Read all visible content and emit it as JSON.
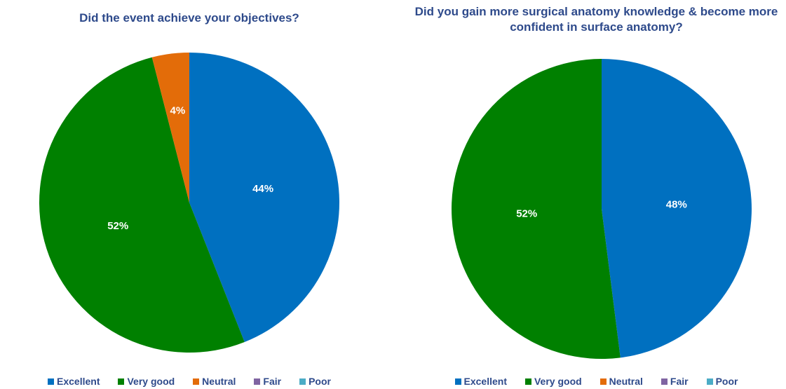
{
  "chart_data": [
    {
      "type": "pie",
      "title": "Did the event achieve your objectives?",
      "categories": [
        "Excellent",
        "Very good",
        "Neutral",
        "Fair",
        "Poor"
      ],
      "values": [
        44,
        52,
        4,
        0,
        0
      ],
      "data_labels": [
        "44%",
        "52%",
        "4%",
        "",
        ""
      ],
      "colors": [
        "#0070C0",
        "#008000",
        "#E36C09",
        "#8064A2",
        "#4BACC6"
      ],
      "legend_position": "bottom"
    },
    {
      "type": "pie",
      "title": "Did you gain more surgical anatomy knowledge & become more confident in surface anatomy?",
      "categories": [
        "Excellent",
        "Very good",
        "Neutral",
        "Fair",
        "Poor"
      ],
      "values": [
        48,
        52,
        0,
        0,
        0
      ],
      "data_labels": [
        "48%",
        "52%",
        "",
        "",
        ""
      ],
      "colors": [
        "#0070C0",
        "#008000",
        "#E36C09",
        "#8064A2",
        "#4BACC6"
      ],
      "legend_position": "bottom"
    }
  ]
}
